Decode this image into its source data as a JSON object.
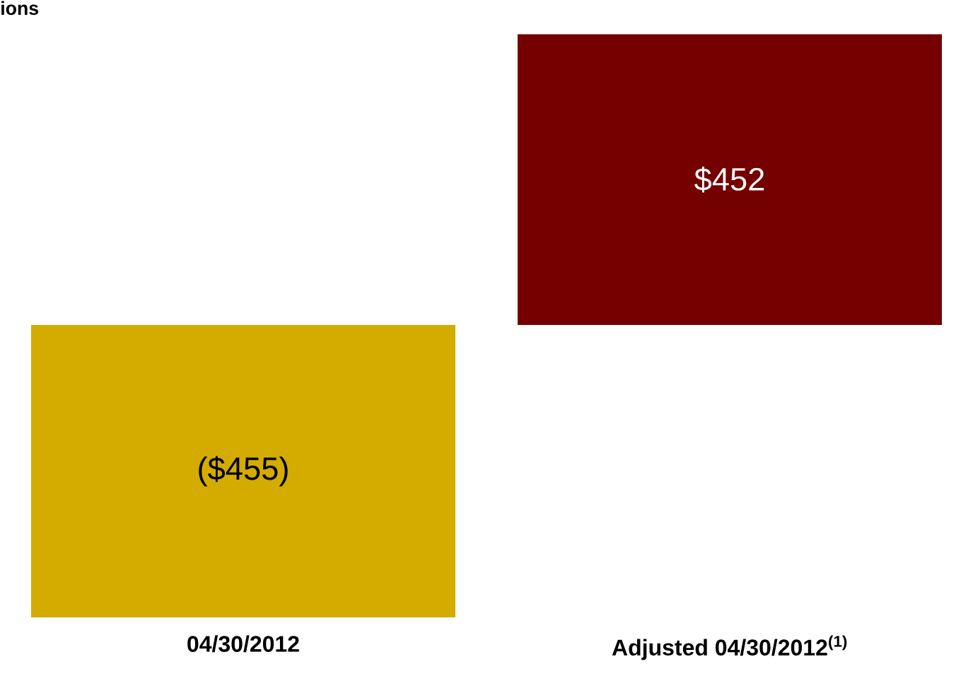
{
  "chart_data": {
    "type": "bar",
    "title": "ions",
    "categories": [
      "04/30/2012",
      "Adjusted 04/30/2012$^{(1)}$"
    ],
    "values": [
      -455,
      452
    ],
    "colors": [
      "#d4ac00",
      "#740000"
    ],
    "value_labels": [
      "($455)",
      "$452"
    ]
  }
}
